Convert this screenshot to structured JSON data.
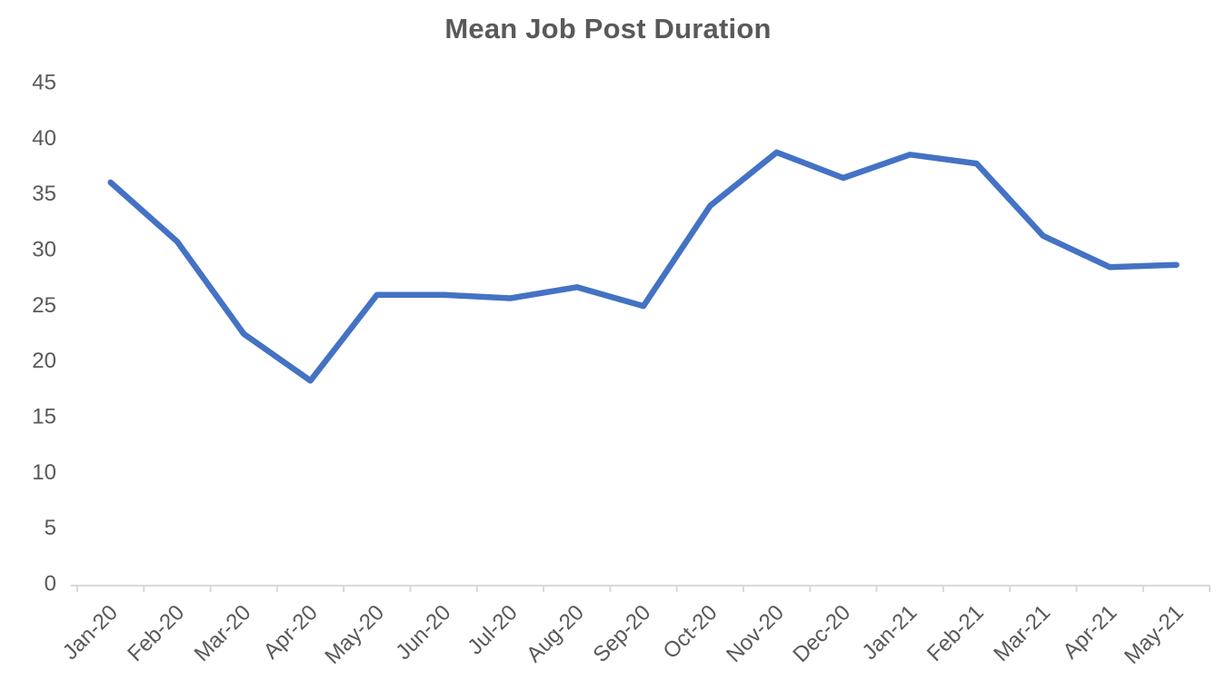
{
  "chart_data": {
    "type": "line",
    "title": "Mean Job Post Duration",
    "categories": [
      "Jan-20",
      "Feb-20",
      "Mar-20",
      "Apr-20",
      "May-20",
      "Jun-20",
      "Jul-20",
      "Aug-20",
      "Sep-20",
      "Oct-20",
      "Nov-20",
      "Dec-20",
      "Jan-21",
      "Feb-21",
      "Mar-21",
      "Apr-21",
      "May-21"
    ],
    "values": [
      36.2,
      30.9,
      22.6,
      18.4,
      26.1,
      26.1,
      25.8,
      26.8,
      25.1,
      34.1,
      38.9,
      36.6,
      38.7,
      37.9,
      31.4,
      28.6,
      28.8
    ],
    "xlabel": "",
    "ylabel": "",
    "ylim": [
      0,
      45
    ],
    "ytick_step": 5,
    "ytick_labels": [
      "0",
      "5",
      "10",
      "15",
      "20",
      "25",
      "30",
      "35",
      "40",
      "45"
    ],
    "grid": false,
    "legend": false,
    "colors": {
      "line": "#4472C4",
      "axis": "#D9D9D9",
      "text": "#595959",
      "background": "#FFFFFF"
    }
  }
}
